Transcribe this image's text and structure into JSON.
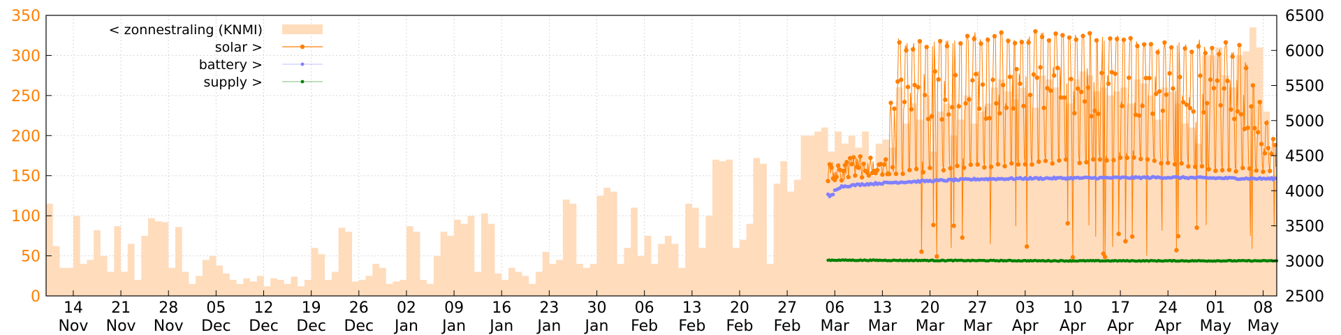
{
  "chart_data": {
    "type": "line",
    "title": "",
    "xlabel": "",
    "ylabel": "",
    "y2label": "",
    "ylim": [
      0,
      350
    ],
    "y2lim": [
      2500,
      6500
    ],
    "xlim": [
      "2020-11-10",
      "2021-05-10"
    ],
    "grid": true,
    "legend_position": "top-left",
    "y_ticks": [
      0,
      50,
      100,
      150,
      200,
      250,
      300,
      350
    ],
    "y2_ticks": [
      2500,
      3000,
      3500,
      4000,
      4500,
      5000,
      5500,
      6000,
      6500
    ],
    "x_ticks": [
      {
        "day": "14",
        "month": "Nov",
        "date": "2020-11-14"
      },
      {
        "day": "21",
        "month": "Nov",
        "date": "2020-11-21"
      },
      {
        "day": "28",
        "month": "Nov",
        "date": "2020-11-28"
      },
      {
        "day": "05",
        "month": "Dec",
        "date": "2020-12-05"
      },
      {
        "day": "12",
        "month": "Dec",
        "date": "2020-12-12"
      },
      {
        "day": "19",
        "month": "Dec",
        "date": "2020-12-19"
      },
      {
        "day": "26",
        "month": "Dec",
        "date": "2020-12-26"
      },
      {
        "day": "02",
        "month": "Jan",
        "date": "2021-01-02"
      },
      {
        "day": "09",
        "month": "Jan",
        "date": "2021-01-09"
      },
      {
        "day": "16",
        "month": "Jan",
        "date": "2021-01-16"
      },
      {
        "day": "23",
        "month": "Jan",
        "date": "2021-01-23"
      },
      {
        "day": "30",
        "month": "Jan",
        "date": "2021-01-30"
      },
      {
        "day": "06",
        "month": "Feb",
        "date": "2021-02-06"
      },
      {
        "day": "13",
        "month": "Feb",
        "date": "2021-02-13"
      },
      {
        "day": "20",
        "month": "Feb",
        "date": "2021-02-20"
      },
      {
        "day": "27",
        "month": "Feb",
        "date": "2021-02-27"
      },
      {
        "day": "06",
        "month": "Mar",
        "date": "2021-03-06"
      },
      {
        "day": "13",
        "month": "Mar",
        "date": "2021-03-13"
      },
      {
        "day": "20",
        "month": "Mar",
        "date": "2021-03-20"
      },
      {
        "day": "27",
        "month": "Mar",
        "date": "2021-03-27"
      },
      {
        "day": "03",
        "month": "Apr",
        "date": "2021-04-03"
      },
      {
        "day": "10",
        "month": "Apr",
        "date": "2021-04-10"
      },
      {
        "day": "17",
        "month": "Apr",
        "date": "2021-04-17"
      },
      {
        "day": "24",
        "month": "Apr",
        "date": "2021-04-24"
      },
      {
        "day": "01",
        "month": "May",
        "date": "2021-05-01"
      },
      {
        "day": "08",
        "month": "May",
        "date": "2021-05-08"
      }
    ],
    "colors": {
      "zonnestraling": "#ffdcbc",
      "solar": "#ff7f00",
      "battery": "#8080ff",
      "supply": "#008000",
      "left_axis": "#ff8000",
      "grid": "#d8d8d8"
    },
    "series": [
      {
        "name": "< zonnestraling (KNMI)",
        "type": "area",
        "axis": "left",
        "points": [
          [
            "2020-11-10",
            115
          ],
          [
            "2020-11-11",
            62
          ],
          [
            "2020-11-12",
            35
          ],
          [
            "2020-11-13",
            35
          ],
          [
            "2020-11-14",
            100
          ],
          [
            "2020-11-15",
            40
          ],
          [
            "2020-11-16",
            45
          ],
          [
            "2020-11-17",
            82
          ],
          [
            "2020-11-18",
            50
          ],
          [
            "2020-11-19",
            30
          ],
          [
            "2020-11-20",
            87
          ],
          [
            "2020-11-21",
            30
          ],
          [
            "2020-11-22",
            65
          ],
          [
            "2020-11-23",
            20
          ],
          [
            "2020-11-24",
            75
          ],
          [
            "2020-11-25",
            97
          ],
          [
            "2020-11-26",
            93
          ],
          [
            "2020-11-27",
            92
          ],
          [
            "2020-11-28",
            35
          ],
          [
            "2020-11-29",
            86
          ],
          [
            "2020-11-30",
            30
          ],
          [
            "2020-12-01",
            15
          ],
          [
            "2020-12-02",
            25
          ],
          [
            "2020-12-03",
            45
          ],
          [
            "2020-12-04",
            50
          ],
          [
            "2020-12-05",
            38
          ],
          [
            "2020-12-06",
            28
          ],
          [
            "2020-12-07",
            20
          ],
          [
            "2020-12-08",
            15
          ],
          [
            "2020-12-09",
            22
          ],
          [
            "2020-12-10",
            18
          ],
          [
            "2020-12-11",
            25
          ],
          [
            "2020-12-12",
            12
          ],
          [
            "2020-12-13",
            22
          ],
          [
            "2020-12-14",
            20
          ],
          [
            "2020-12-15",
            15
          ],
          [
            "2020-12-16",
            24
          ],
          [
            "2020-12-17",
            12
          ],
          [
            "2020-12-18",
            20
          ],
          [
            "2020-12-19",
            60
          ],
          [
            "2020-12-20",
            52
          ],
          [
            "2020-12-21",
            20
          ],
          [
            "2020-12-22",
            30
          ],
          [
            "2020-12-23",
            85
          ],
          [
            "2020-12-24",
            80
          ],
          [
            "2020-12-25",
            18
          ],
          [
            "2020-12-26",
            20
          ],
          [
            "2020-12-27",
            25
          ],
          [
            "2020-12-28",
            40
          ],
          [
            "2020-12-29",
            35
          ],
          [
            "2020-12-30",
            15
          ],
          [
            "2020-12-31",
            18
          ],
          [
            "2021-01-01",
            20
          ],
          [
            "2021-01-02",
            87
          ],
          [
            "2021-01-03",
            80
          ],
          [
            "2021-01-04",
            20
          ],
          [
            "2021-01-05",
            15
          ],
          [
            "2021-01-06",
            50
          ],
          [
            "2021-01-07",
            80
          ],
          [
            "2021-01-08",
            75
          ],
          [
            "2021-01-09",
            95
          ],
          [
            "2021-01-10",
            90
          ],
          [
            "2021-01-11",
            100
          ],
          [
            "2021-01-12",
            30
          ],
          [
            "2021-01-13",
            103
          ],
          [
            "2021-01-14",
            90
          ],
          [
            "2021-01-15",
            28
          ],
          [
            "2021-01-16",
            20
          ],
          [
            "2021-01-17",
            35
          ],
          [
            "2021-01-18",
            30
          ],
          [
            "2021-01-19",
            25
          ],
          [
            "2021-01-20",
            15
          ],
          [
            "2021-01-21",
            30
          ],
          [
            "2021-01-22",
            55
          ],
          [
            "2021-01-23",
            40
          ],
          [
            "2021-01-24",
            45
          ],
          [
            "2021-01-25",
            120
          ],
          [
            "2021-01-26",
            115
          ],
          [
            "2021-01-27",
            40
          ],
          [
            "2021-01-28",
            35
          ],
          [
            "2021-01-29",
            40
          ],
          [
            "2021-01-30",
            125
          ],
          [
            "2021-01-31",
            135
          ],
          [
            "2021-02-01",
            130
          ],
          [
            "2021-02-02",
            40
          ],
          [
            "2021-02-03",
            60
          ],
          [
            "2021-02-04",
            110
          ],
          [
            "2021-02-05",
            50
          ],
          [
            "2021-02-06",
            75
          ],
          [
            "2021-02-07",
            40
          ],
          [
            "2021-02-08",
            65
          ],
          [
            "2021-02-09",
            75
          ],
          [
            "2021-02-10",
            65
          ],
          [
            "2021-02-11",
            35
          ],
          [
            "2021-02-12",
            115
          ],
          [
            "2021-02-13",
            110
          ],
          [
            "2021-02-14",
            60
          ],
          [
            "2021-02-15",
            100
          ],
          [
            "2021-02-16",
            170
          ],
          [
            "2021-02-17",
            168
          ],
          [
            "2021-02-18",
            170
          ],
          [
            "2021-02-19",
            60
          ],
          [
            "2021-02-20",
            70
          ],
          [
            "2021-02-21",
            90
          ],
          [
            "2021-02-22",
            172
          ],
          [
            "2021-02-23",
            165
          ],
          [
            "2021-02-24",
            40
          ],
          [
            "2021-02-25",
            140
          ],
          [
            "2021-02-26",
            168
          ],
          [
            "2021-02-27",
            130
          ],
          [
            "2021-02-28",
            145
          ],
          [
            "2021-03-01",
            200
          ],
          [
            "2021-03-02",
            200
          ],
          [
            "2021-03-03",
            205
          ],
          [
            "2021-03-04",
            210
          ],
          [
            "2021-03-05",
            180
          ],
          [
            "2021-03-06",
            205
          ],
          [
            "2021-03-07",
            190
          ],
          [
            "2021-03-08",
            200
          ],
          [
            "2021-03-09",
            185
          ],
          [
            "2021-03-10",
            205
          ],
          [
            "2021-03-11",
            150
          ],
          [
            "2021-03-12",
            190
          ],
          [
            "2021-03-13",
            195
          ],
          [
            "2021-03-14",
            185
          ],
          [
            "2021-03-15",
            260
          ],
          [
            "2021-03-16",
            215
          ],
          [
            "2021-03-17",
            240
          ],
          [
            "2021-03-18",
            220
          ],
          [
            "2021-03-19",
            250
          ],
          [
            "2021-03-20",
            180
          ],
          [
            "2021-03-21",
            230
          ],
          [
            "2021-03-22",
            240
          ],
          [
            "2021-03-23",
            200
          ],
          [
            "2021-03-24",
            220
          ],
          [
            "2021-03-25",
            250
          ],
          [
            "2021-03-26",
            215
          ],
          [
            "2021-03-27",
            230
          ],
          [
            "2021-03-28",
            240
          ],
          [
            "2021-03-29",
            260
          ],
          [
            "2021-03-30",
            270
          ],
          [
            "2021-03-31",
            255
          ],
          [
            "2021-04-01",
            245
          ],
          [
            "2021-04-02",
            260
          ],
          [
            "2021-04-03",
            250
          ],
          [
            "2021-04-04",
            235
          ],
          [
            "2021-04-05",
            275
          ],
          [
            "2021-04-06",
            270
          ],
          [
            "2021-04-07",
            260
          ],
          [
            "2021-04-08",
            250
          ],
          [
            "2021-04-09",
            240
          ],
          [
            "2021-04-10",
            270
          ],
          [
            "2021-04-11",
            280
          ],
          [
            "2021-04-12",
            275
          ],
          [
            "2021-04-13",
            255
          ],
          [
            "2021-04-14",
            260
          ],
          [
            "2021-04-15",
            250
          ],
          [
            "2021-04-16",
            255
          ],
          [
            "2021-04-17",
            260
          ],
          [
            "2021-04-18",
            240
          ],
          [
            "2021-04-19",
            270
          ],
          [
            "2021-04-20",
            265
          ],
          [
            "2021-04-21",
            250
          ],
          [
            "2021-04-22",
            220
          ],
          [
            "2021-04-23",
            260
          ],
          [
            "2021-04-24",
            255
          ],
          [
            "2021-04-25",
            240
          ],
          [
            "2021-04-26",
            215
          ],
          [
            "2021-04-27",
            210
          ],
          [
            "2021-04-28",
            190
          ],
          [
            "2021-04-29",
            300
          ],
          [
            "2021-04-30",
            300
          ],
          [
            "2021-05-01",
            310
          ],
          [
            "2021-05-02",
            275
          ],
          [
            "2021-05-03",
            260
          ],
          [
            "2021-05-04",
            300
          ],
          [
            "2021-05-05",
            305
          ],
          [
            "2021-05-06",
            335
          ],
          [
            "2021-05-07",
            310
          ],
          [
            "2021-05-08",
            230
          ],
          [
            "2021-05-09",
            150
          ],
          [
            "2021-05-10",
            155
          ]
        ]
      },
      {
        "name": "solar >",
        "type": "line",
        "axis": "right",
        "marker": "circle",
        "range": [
          "2021-03-05",
          "2021-05-10"
        ],
        "plateau": [
          [
            "2021-03-05",
            4450
          ],
          [
            "2021-03-14",
            4480
          ],
          [
            "2021-03-15",
            6150
          ],
          [
            "2021-03-25",
            6200
          ],
          [
            "2021-04-05",
            6250
          ],
          [
            "2021-04-20",
            6150
          ],
          [
            "2021-05-01",
            6100
          ],
          [
            "2021-05-05",
            6050
          ],
          [
            "2021-05-07",
            5400
          ],
          [
            "2021-05-10",
            4600
          ]
        ],
        "base": [
          [
            "2021-03-05",
            4150
          ],
          [
            "2021-03-14",
            4250
          ],
          [
            "2021-03-20",
            4300
          ],
          [
            "2021-04-03",
            4400
          ],
          [
            "2021-04-20",
            4450
          ],
          [
            "2021-05-01",
            4300
          ],
          [
            "2021-05-10",
            4300
          ]
        ]
      },
      {
        "name": "battery >",
        "type": "line",
        "axis": "right",
        "marker": "dot",
        "range": [
          "2021-03-05",
          "2021-05-10"
        ],
        "points": [
          [
            "2021-03-05",
            3970
          ],
          [
            "2021-03-07",
            4060
          ],
          [
            "2021-03-10",
            4090
          ],
          [
            "2021-03-15",
            4120
          ],
          [
            "2021-03-20",
            4140
          ],
          [
            "2021-03-27",
            4165
          ],
          [
            "2021-04-03",
            4175
          ],
          [
            "2021-04-10",
            4180
          ],
          [
            "2021-04-17",
            4185
          ],
          [
            "2021-04-24",
            4190
          ],
          [
            "2021-05-01",
            4180
          ],
          [
            "2021-05-10",
            4170
          ]
        ]
      },
      {
        "name": "supply >",
        "type": "line",
        "axis": "right",
        "marker": "dot",
        "range": [
          "2021-03-05",
          "2021-05-10"
        ],
        "points": [
          [
            "2021-03-05",
            3010
          ],
          [
            "2021-03-20",
            3005
          ],
          [
            "2021-04-10",
            3000
          ],
          [
            "2021-05-01",
            3000
          ],
          [
            "2021-05-10",
            3000
          ]
        ]
      }
    ]
  }
}
